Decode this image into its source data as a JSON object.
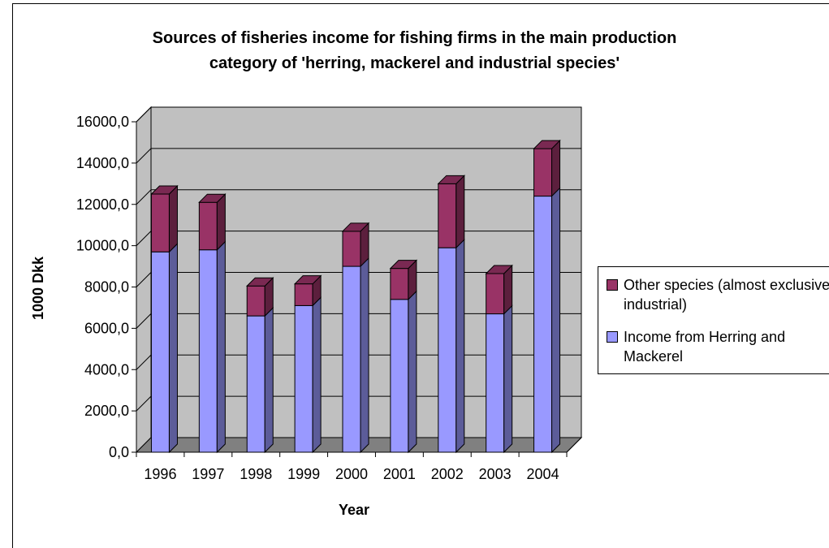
{
  "chart_data": {
    "type": "bar",
    "stacked": true,
    "three_d": true,
    "title_lines": [
      "Sources of fisheries income for fishing firms in the main production",
      "category of 'herring, mackerel and industrial species'"
    ],
    "xlabel": "Year",
    "ylabel": "1000 Dkk",
    "categories": [
      "1996",
      "1997",
      "1998",
      "1999",
      "2000",
      "2001",
      "2002",
      "2003",
      "2004"
    ],
    "ylim": [
      0,
      16000
    ],
    "y_ticks": [
      0,
      2000,
      4000,
      6000,
      8000,
      10000,
      12000,
      14000,
      16000
    ],
    "y_tick_labels": [
      "0,0",
      "2000,0",
      "4000,0",
      "6000,0",
      "8000,0",
      "10000,0",
      "12000,0",
      "14000,0",
      "16000,0"
    ],
    "grid": true,
    "legend_position": "right",
    "series": [
      {
        "name": "Income from Herring and Mackerel",
        "color": "#9999ff",
        "values": [
          9700,
          9800,
          6600,
          7100,
          9000,
          7400,
          9900,
          6700,
          12400
        ]
      },
      {
        "name": "Other species (almost exclusively industrial)",
        "color": "#993366",
        "values": [
          2800,
          2300,
          1450,
          1050,
          1700,
          1500,
          3100,
          1950,
          2300
        ]
      }
    ]
  },
  "colors": {
    "plot_wall": "#c0c0c0",
    "plot_floor": "#808080",
    "gridline": "#000000"
  }
}
